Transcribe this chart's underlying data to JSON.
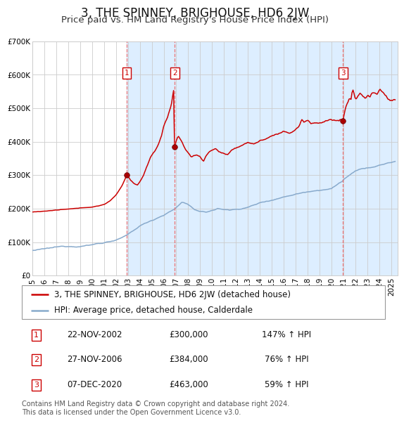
{
  "title": "3, THE SPINNEY, BRIGHOUSE, HD6 2JW",
  "subtitle": "Price paid vs. HM Land Registry's House Price Index (HPI)",
  "ylim": [
    0,
    700000
  ],
  "yticks": [
    0,
    100000,
    200000,
    300000,
    400000,
    500000,
    600000,
    700000
  ],
  "ytick_labels": [
    "£0",
    "£100K",
    "£200K",
    "£300K",
    "£400K",
    "£500K",
    "£600K",
    "£700K"
  ],
  "xlim_start": 1995.0,
  "xlim_end": 2025.5,
  "xticks": [
    1995,
    1996,
    1997,
    1998,
    1999,
    2000,
    2001,
    2002,
    2003,
    2004,
    2005,
    2006,
    2007,
    2008,
    2009,
    2010,
    2011,
    2012,
    2013,
    2014,
    2015,
    2016,
    2017,
    2018,
    2019,
    2020,
    2021,
    2022,
    2023,
    2024,
    2025
  ],
  "purchase_color": "#cc0000",
  "hpi_color": "#88aacc",
  "vline_color": "#ee6666",
  "shade_color": "#ddeeff",
  "grid_color": "#cccccc",
  "sales": [
    {
      "label": "1",
      "date_num": 2002.9,
      "price": 300000,
      "display_date": "22-NOV-2002",
      "price_str": "£300,000",
      "pct": "147%",
      "direction": "↑"
    },
    {
      "label": "2",
      "date_num": 2006.9,
      "price": 384000,
      "display_date": "27-NOV-2006",
      "price_str": "£384,000",
      "pct": "76%",
      "direction": "↑"
    },
    {
      "label": "3",
      "date_num": 2020.95,
      "price": 463000,
      "display_date": "07-DEC-2020",
      "price_str": "£463,000",
      "pct": "59%",
      "direction": "↑"
    }
  ],
  "legend_line1": "3, THE SPINNEY, BRIGHOUSE, HD6 2JW (detached house)",
  "legend_line2": "HPI: Average price, detached house, Calderdale",
  "footnote": "Contains HM Land Registry data © Crown copyright and database right 2024.\nThis data is licensed under the Open Government Licence v3.0.",
  "title_fontsize": 12,
  "subtitle_fontsize": 9.5,
  "tick_fontsize": 7.5,
  "legend_fontsize": 8.5,
  "table_fontsize": 8.5,
  "footnote_fontsize": 7
}
